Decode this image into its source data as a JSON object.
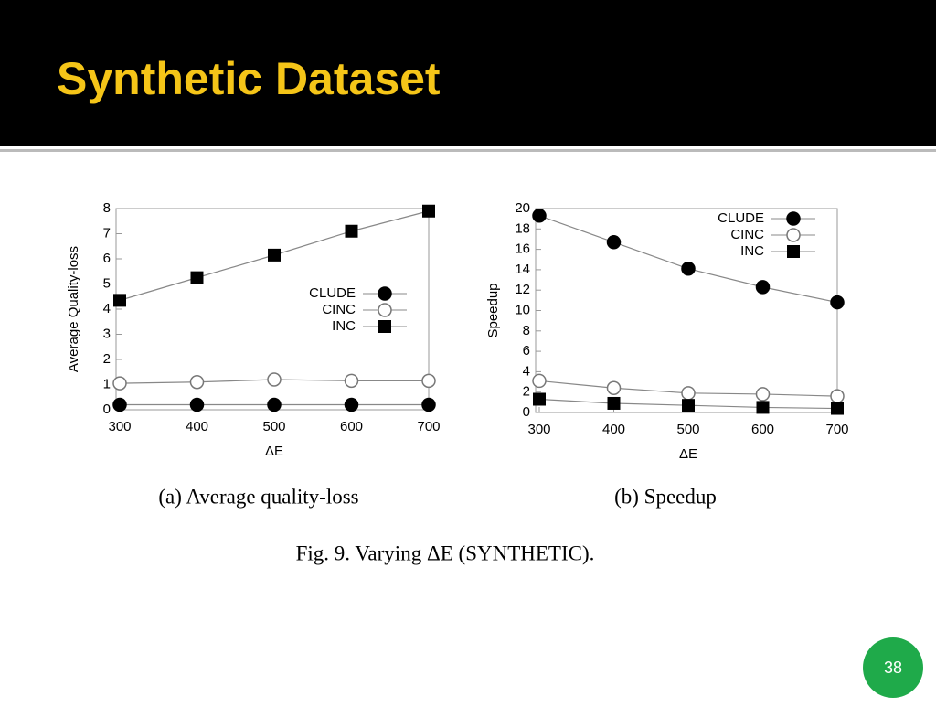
{
  "title": "Synthetic Dataset",
  "chart_data": [
    {
      "type": "line",
      "caption": "(a) Average quality-loss",
      "xlabel": "ΔE",
      "ylabel": "Average Quality-loss",
      "x": [
        300,
        400,
        500,
        600,
        700
      ],
      "xlim": [
        300,
        700
      ],
      "xticks": [
        300,
        400,
        500,
        600,
        700
      ],
      "ylim": [
        0,
        8
      ],
      "yticks": [
        0,
        1,
        2,
        3,
        4,
        5,
        6,
        7,
        8
      ],
      "grid": false,
      "legend": "center right",
      "series": [
        {
          "name": "CLUDE",
          "color": "#000000",
          "marker": "circle",
          "values": [
            0.2,
            0.2,
            0.2,
            0.2,
            0.2
          ]
        },
        {
          "name": "CINC",
          "color": "#000000",
          "marker": "open-circle",
          "values": [
            1.05,
            1.1,
            1.2,
            1.15,
            1.15
          ]
        },
        {
          "name": "INC",
          "color": "#000000",
          "marker": "square",
          "values": [
            4.35,
            5.25,
            6.15,
            7.1,
            7.9
          ]
        }
      ]
    },
    {
      "type": "line",
      "caption": "(b) Speedup",
      "xlabel": "ΔE",
      "ylabel": "Speedup",
      "x": [
        300,
        400,
        500,
        600,
        700
      ],
      "xlim": [
        300,
        700
      ],
      "xticks": [
        300,
        400,
        500,
        600,
        700
      ],
      "ylim": [
        0,
        20
      ],
      "yticks": [
        0,
        2,
        4,
        6,
        8,
        10,
        12,
        14,
        16,
        18,
        20
      ],
      "grid": false,
      "legend": "upper right",
      "series": [
        {
          "name": "CLUDE",
          "color": "#000000",
          "marker": "circle",
          "values": [
            19.3,
            16.7,
            14.1,
            12.3,
            10.8
          ]
        },
        {
          "name": "CINC",
          "color": "#000000",
          "marker": "open-circle",
          "values": [
            3.1,
            2.4,
            1.9,
            1.8,
            1.6
          ]
        },
        {
          "name": "INC",
          "color": "#000000",
          "marker": "square",
          "values": [
            1.3,
            0.9,
            0.7,
            0.5,
            0.4
          ]
        }
      ]
    }
  ],
  "figure_caption": "Fig. 9. Varying ΔE (SYNTHETIC).",
  "page_number": 38
}
